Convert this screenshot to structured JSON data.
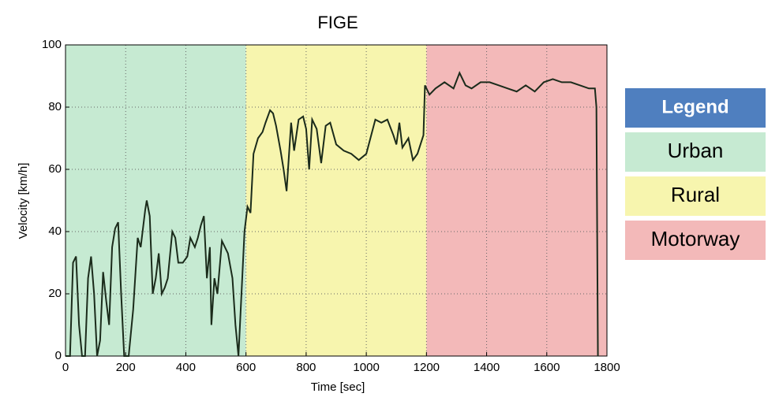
{
  "chart_data": {
    "type": "line",
    "title": "FIGE",
    "x_label": "Time [sec]",
    "y_label": "Velocity [km/h]",
    "x": [
      0,
      15,
      25,
      35,
      45,
      55,
      65,
      75,
      85,
      95,
      105,
      115,
      125,
      135,
      145,
      155,
      165,
      175,
      185,
      195,
      210,
      225,
      240,
      250,
      265,
      270,
      280,
      290,
      300,
      310,
      320,
      330,
      340,
      355,
      365,
      375,
      390,
      405,
      415,
      430,
      440,
      450,
      460,
      470,
      480,
      485,
      495,
      505,
      520,
      540,
      555,
      565,
      575,
      585,
      595,
      605,
      615,
      625,
      640,
      655,
      665,
      680,
      690,
      700,
      715,
      725,
      735,
      750,
      760,
      775,
      790,
      800,
      810,
      820,
      835,
      850,
      865,
      880,
      900,
      925,
      950,
      975,
      1000,
      1030,
      1050,
      1070,
      1090,
      1100,
      1110,
      1120,
      1140,
      1155,
      1170,
      1190,
      1195,
      1210,
      1230,
      1260,
      1290,
      1310,
      1330,
      1350,
      1380,
      1410,
      1440,
      1470,
      1500,
      1530,
      1560,
      1590,
      1620,
      1650,
      1680,
      1710,
      1740,
      1760,
      1765,
      1770
    ],
    "series": [
      {
        "name": "Velocity",
        "color": "#1b2b1b",
        "values": [
          0,
          0,
          30,
          32,
          10,
          0,
          0,
          25,
          32,
          20,
          0,
          5,
          27,
          18,
          10,
          35,
          41,
          43,
          20,
          0,
          0,
          15,
          38,
          35,
          47,
          50,
          45,
          20,
          25,
          33,
          20,
          22,
          25,
          40,
          38,
          30,
          30,
          32,
          38,
          35,
          38,
          42,
          45,
          25,
          35,
          10,
          25,
          20,
          37,
          33,
          25,
          10,
          0,
          20,
          40,
          48,
          46,
          65,
          70,
          72,
          75,
          79,
          78,
          74,
          66,
          60,
          53,
          75,
          66,
          76,
          77,
          73,
          60,
          76,
          73,
          62,
          74,
          75,
          68,
          66,
          65,
          63,
          65,
          76,
          75,
          76,
          71,
          68,
          75,
          67,
          70,
          63,
          65,
          71,
          87,
          84,
          86,
          88,
          86,
          91,
          87,
          86,
          88,
          88,
          87,
          86,
          85,
          87,
          85,
          88,
          89,
          88,
          88,
          87,
          86,
          86,
          80,
          0
        ]
      }
    ],
    "regions": [
      {
        "name": "Urban",
        "start": 0,
        "end": 600,
        "color": "#c6ead2"
      },
      {
        "name": "Rural",
        "start": 600,
        "end": 1200,
        "color": "#f7f5ae"
      },
      {
        "name": "Motorway",
        "start": 1200,
        "end": 1800,
        "color": "#f3b9b9"
      }
    ],
    "legend_title": "Legend",
    "legend_title_color": "#4f7fbf",
    "xlim": [
      0,
      1800
    ],
    "xticks": [
      0,
      200,
      400,
      600,
      800,
      1000,
      1200,
      1400,
      1600,
      1800
    ],
    "ylim": [
      0,
      100
    ],
    "yticks": [
      0,
      20,
      40,
      60,
      80,
      100
    ],
    "grid": true
  }
}
